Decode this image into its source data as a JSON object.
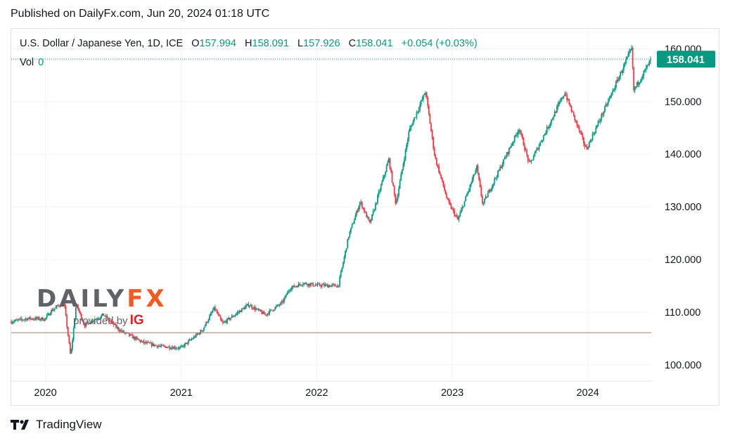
{
  "published": "Published on DailyFx.com, Jun 20, 2024 01:18 UTC",
  "legend": {
    "symbol": "U.S. Dollar / Japanese Yen, 1D, ICE",
    "o_label": "O",
    "o_value": "157.994",
    "h_label": "H",
    "h_value": "158.091",
    "l_label": "L",
    "l_value": "157.926",
    "c_label": "C",
    "c_value": "158.041",
    "change": "+0.054 (+0.03%)",
    "vol_label": "Vol",
    "vol_value": "0"
  },
  "price_tag": "158.041",
  "watermark": {
    "brand_main": "DAILY",
    "brand_fx": "FX",
    "provided_by": "provided by",
    "ig": "IG"
  },
  "footer": {
    "brand": "TradingView"
  },
  "colors": {
    "up": "#089981",
    "down": "#f23645",
    "grid": "#f0f3fa",
    "price_tag_bg": "#089981",
    "wick": "#5d606b"
  },
  "chart_data": {
    "type": "candlestick",
    "title": "U.S. Dollar / Japanese Yen, 1D, ICE",
    "y_ticks": [
      "100.000",
      "110.000",
      "120.000",
      "130.000",
      "140.000",
      "150.000",
      "160.000"
    ],
    "y_tick_values": [
      100,
      110,
      120,
      130,
      140,
      150,
      160
    ],
    "x_ticks": [
      "2020",
      "2021",
      "2022",
      "2023",
      "2024"
    ],
    "x_tick_dates": [
      "2020-01-01",
      "2021-01-01",
      "2022-01-01",
      "2023-01-01",
      "2024-01-01"
    ],
    "x_range": [
      "2019-10-01",
      "2024-06-20"
    ],
    "y_range": [
      96.9,
      163.8
    ],
    "last_price": 158.041,
    "reference_line": 106.1,
    "price_path": [
      [
        "2019-10-01",
        108.2
      ],
      [
        "2019-11-15",
        108.8
      ],
      [
        "2019-12-31",
        108.7
      ],
      [
        "2020-01-16",
        110.2
      ],
      [
        "2020-02-20",
        112.0
      ],
      [
        "2020-03-09",
        101.5
      ],
      [
        "2020-03-24",
        111.5
      ],
      [
        "2020-04-15",
        107.5
      ],
      [
        "2020-06-05",
        109.5
      ],
      [
        "2020-07-20",
        106.5
      ],
      [
        "2020-09-21",
        104.2
      ],
      [
        "2020-11-06",
        103.5
      ],
      [
        "2020-12-31",
        103.2
      ],
      [
        "2021-02-26",
        106.5
      ],
      [
        "2021-03-31",
        110.8
      ],
      [
        "2021-04-22",
        107.8
      ],
      [
        "2021-07-01",
        111.4
      ],
      [
        "2021-08-15",
        109.5
      ],
      [
        "2021-09-30",
        111.8
      ],
      [
        "2021-10-20",
        114.5
      ],
      [
        "2021-11-24",
        115.5
      ],
      [
        "2021-12-31",
        115.1
      ],
      [
        "2022-02-28",
        115.0
      ],
      [
        "2022-03-28",
        124.5
      ],
      [
        "2022-04-28",
        131.0
      ],
      [
        "2022-05-24",
        126.8
      ],
      [
        "2022-07-14",
        139.0
      ],
      [
        "2022-08-02",
        130.5
      ],
      [
        "2022-09-07",
        144.5
      ],
      [
        "2022-10-21",
        151.9
      ],
      [
        "2022-11-15",
        139.5
      ],
      [
        "2022-12-20",
        131.0
      ],
      [
        "2023-01-16",
        127.5
      ],
      [
        "2023-03-08",
        137.5
      ],
      [
        "2023-03-24",
        130.4
      ],
      [
        "2023-06-30",
        144.9
      ],
      [
        "2023-07-28",
        138.0
      ],
      [
        "2023-10-31",
        151.7
      ],
      [
        "2023-12-28",
        140.9
      ],
      [
        "2024-02-28",
        150.5
      ],
      [
        "2024-04-29",
        160.2
      ],
      [
        "2024-05-03",
        152.0
      ],
      [
        "2024-06-20",
        158.0
      ]
    ]
  }
}
